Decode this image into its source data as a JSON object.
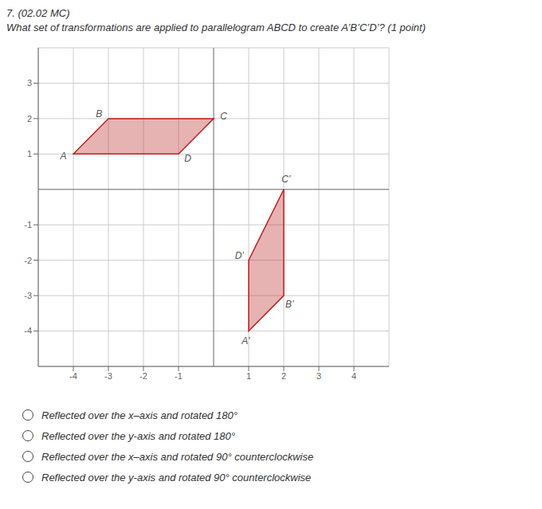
{
  "chart_data": {
    "type": "polygon",
    "title": "7. (02.02 MC)",
    "subtitle": "What set of transformations are applied to parallelogram ABCD to create A’B’C’D’? (1 point)",
    "xlim": [
      -5,
      5
    ],
    "ylim": [
      -5,
      4
    ],
    "xticks": [
      -4,
      -3,
      -2,
      -1,
      1,
      2,
      3,
      4
    ],
    "yticks": [
      -4,
      -3,
      -2,
      -1,
      1,
      2,
      3
    ],
    "grid": true,
    "series": [
      {
        "x": [
          -4,
          -3,
          0,
          -1
        ],
        "values": [
          1,
          2,
          2,
          1
        ],
        "labels": [
          "A",
          "B",
          "C",
          "D"
        ],
        "color": "#bb2222"
      },
      {
        "x": [
          1,
          2,
          2,
          1
        ],
        "values": [
          -4,
          -3,
          0,
          -2
        ],
        "labels": [
          "A’",
          "B’",
          "C’",
          "D’"
        ],
        "color": "#bb2222"
      }
    ],
    "annotations": [
      "Reflected over the x–axis and rotated 180°",
      "Reflected over the y-axis and rotated 180°",
      "Reflected over the x–axis and rotated 90° counterclockwise",
      "Reflected over the y-axis and rotated 90° counterclockwise"
    ]
  }
}
